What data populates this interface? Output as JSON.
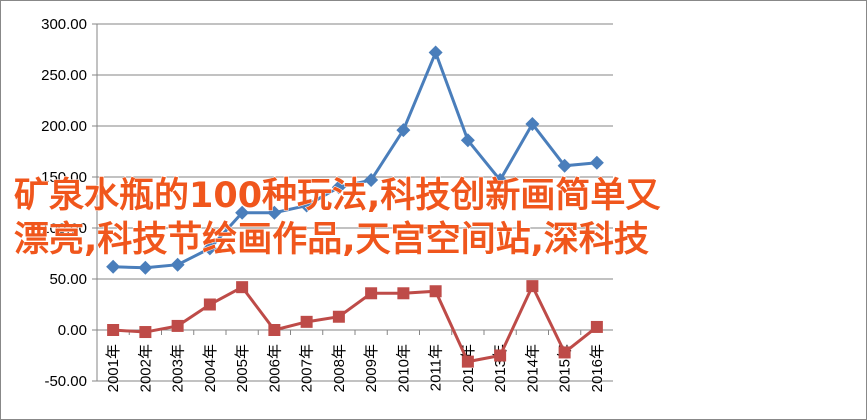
{
  "chart_data": {
    "type": "line",
    "categories": [
      "2001年",
      "2002年",
      "2003年",
      "2004年",
      "2005年",
      "2006年",
      "2007年",
      "2008年",
      "2009年",
      "2010年",
      "2011年",
      "2012年",
      "2013年",
      "2014年",
      "2015年",
      "2016年"
    ],
    "series": [
      {
        "color": "#4a7ebb",
        "marker": "diamond",
        "values": [
          62,
          61,
          64,
          80,
          115,
          115,
          122,
          140,
          147,
          196,
          272,
          186,
          147,
          202,
          161,
          164
        ]
      },
      {
        "color": "#be4b48",
        "marker": "square",
        "values": [
          0,
          -2,
          4,
          25,
          42,
          0,
          8,
          13,
          36,
          36,
          38,
          -31,
          -25,
          43,
          -22,
          3
        ]
      }
    ],
    "ylim": [
      -50,
      300
    ],
    "yticks": [
      {
        "value": -50,
        "label": "-50.00"
      },
      {
        "value": 0,
        "label": "0.00"
      },
      {
        "value": 50,
        "label": "50.00"
      },
      {
        "value": 100,
        "label": "100.00"
      },
      {
        "value": 150,
        "label": "150.00"
      },
      {
        "value": 200,
        "label": "200.00"
      },
      {
        "value": 250,
        "label": "250.00"
      },
      {
        "value": 300,
        "label": "300.00"
      }
    ],
    "grid": true
  },
  "overlay": [
    "矿泉水瓶的100种玩法,科技创新画简单又",
    "漂亮,科技节绘画作品,天宫空间站,深科技"
  ]
}
